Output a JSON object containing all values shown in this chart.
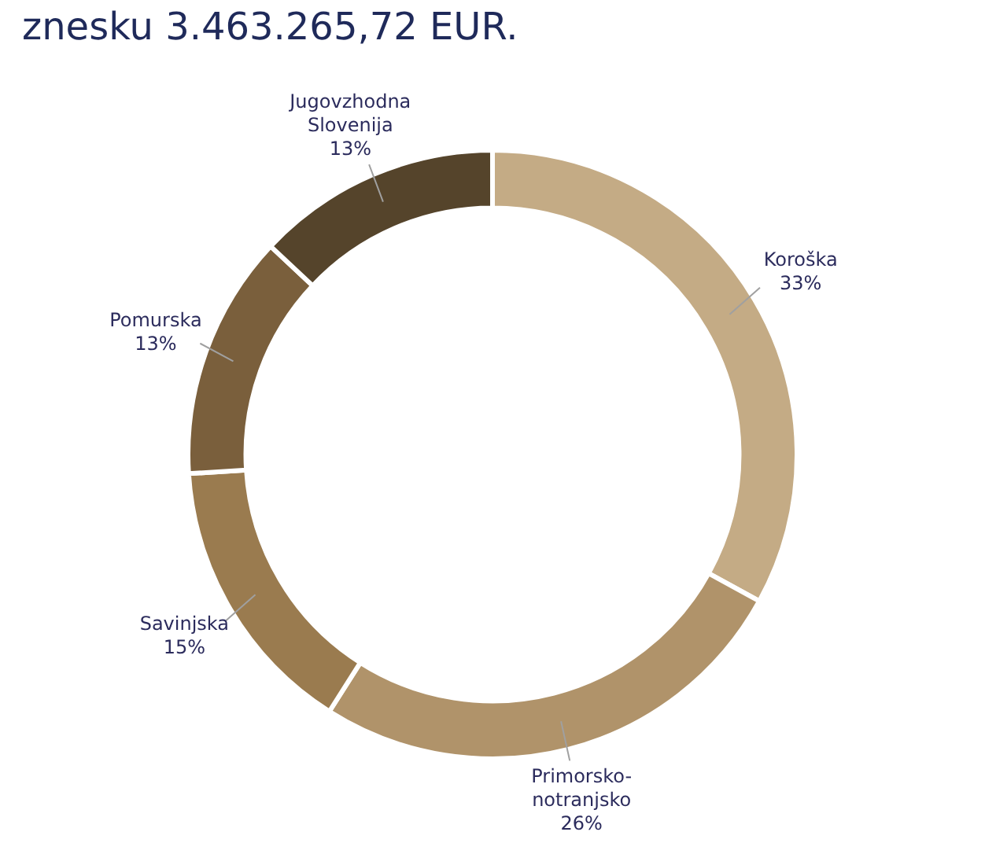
{
  "chart_data": {
    "type": "donut",
    "title": "znesku 3.463.265,72 EUR.",
    "categories": [
      "Koroška",
      "Primorsko-notranjsko",
      "Savinjska",
      "Pomurska",
      "Jugovzhodna Slovenija"
    ],
    "values": [
      33,
      26,
      15,
      13,
      13
    ],
    "value_labels": [
      "33%",
      "26%",
      "15%",
      "13%",
      "13%"
    ],
    "colors": [
      "#c4ab85",
      "#b0936a",
      "#9a7b4f",
      "#7a5f3c",
      "#55442b"
    ],
    "legend": false
  }
}
